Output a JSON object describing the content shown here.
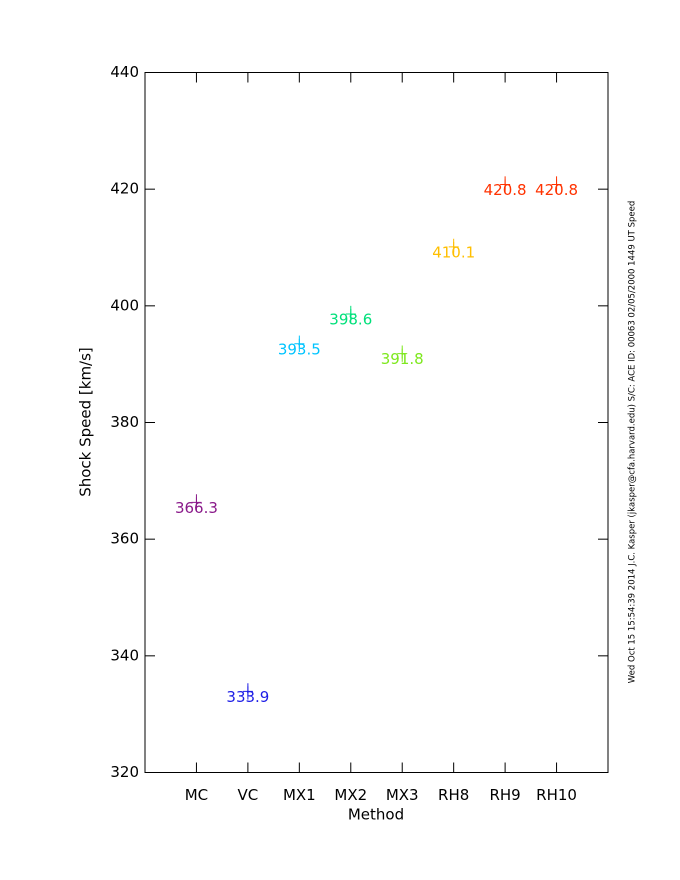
{
  "chart_data": {
    "type": "scatter",
    "x_label": "Method",
    "y_label": "Shock Speed [km/s]",
    "side_note": "Wed Oct 15 15:54:39 2014   J.C. Kasper (jkasper@cfa.harvard.edu)   S/C: ACE ID: 00063 02/05/2000   1449 UT Speed",
    "categories": [
      "MC",
      "VC",
      "MX1",
      "MX2",
      "MX3",
      "RH8",
      "RH9",
      "RH10"
    ],
    "values": [
      366.3,
      333.9,
      393.5,
      398.6,
      391.8,
      410.1,
      420.8,
      420.8
    ],
    "errors": [
      1.4,
      1.4,
      1.4,
      1.4,
      1.4,
      1.4,
      1.4,
      1.4
    ],
    "colors": [
      "#8a1a8a",
      "#1e1ee6",
      "#00c4ff",
      "#00e07a",
      "#7ee81e",
      "#ffbf00",
      "#ff3200",
      "#ff3200"
    ],
    "ylim": [
      320,
      440
    ],
    "yticks": [
      320,
      340,
      360,
      380,
      400,
      420,
      440
    ]
  }
}
